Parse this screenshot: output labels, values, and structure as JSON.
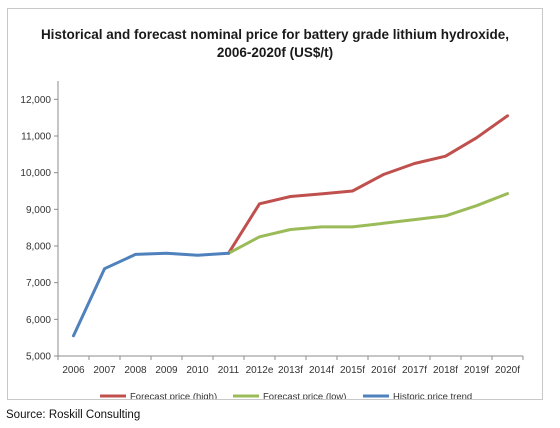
{
  "chart_data": {
    "type": "line",
    "title_line1": "Historical and forecast nominal price for battery grade lithium hydroxide,",
    "title_line2": "2006-2020f (US$/t)",
    "categories": [
      "2006",
      "2007",
      "2008",
      "2009",
      "2010",
      "2011",
      "2012e",
      "2013f",
      "2014f",
      "2015f",
      "2016f",
      "2017f",
      "2018f",
      "2019f",
      "2020f"
    ],
    "yticks": [
      "5,000",
      "6,000",
      "7,000",
      "8,000",
      "9,000",
      "10,000",
      "11,000",
      "12,000"
    ],
    "ylim": [
      5000,
      12500
    ],
    "series": [
      {
        "name": "Forecast price (high)",
        "color": "#c0504d",
        "values": [
          null,
          null,
          null,
          null,
          null,
          7800,
          9150,
          9350,
          9420,
          9500,
          9950,
          10250,
          10450,
          10950,
          11550
        ]
      },
      {
        "name": "Forecast price (low)",
        "color": "#9bbb59",
        "values": [
          null,
          null,
          null,
          null,
          null,
          7800,
          8250,
          8450,
          8520,
          8520,
          8620,
          8720,
          8820,
          9100,
          9430
        ]
      },
      {
        "name": "Historic price trend",
        "color": "#4f81bd",
        "values": [
          5550,
          7380,
          7770,
          7800,
          7750,
          7800,
          null,
          null,
          null,
          null,
          null,
          null,
          null,
          null,
          null
        ]
      }
    ]
  },
  "source": "Source: Roskill Consulting"
}
